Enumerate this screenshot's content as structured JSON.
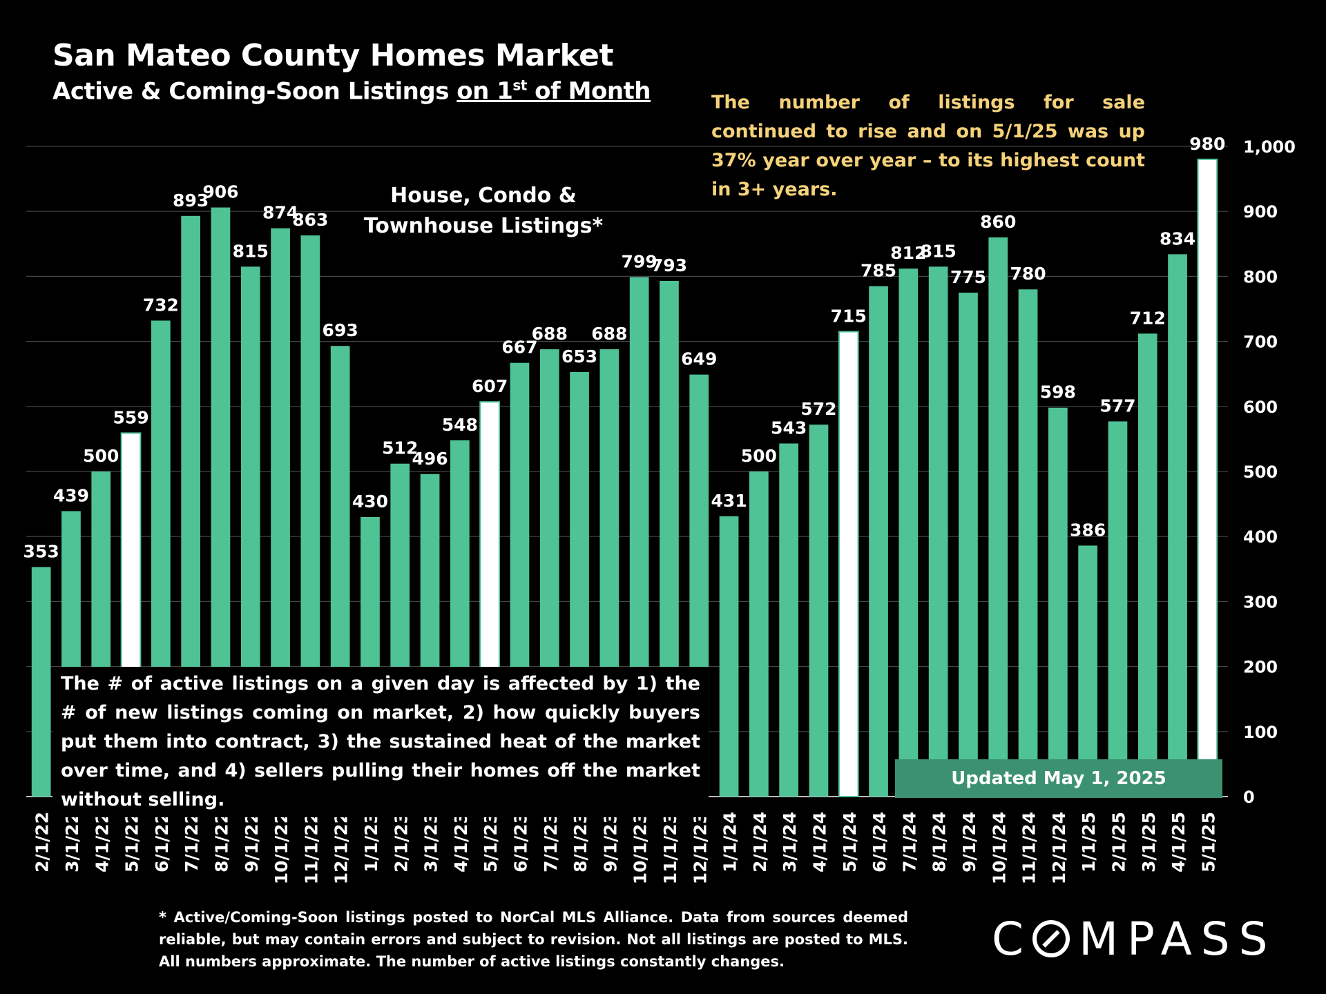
{
  "header": {
    "title": "San Mateo County Homes Market",
    "subtitle_prefix": "Active & Coming-Soon Listings ",
    "subtitle_underlined": "on 1",
    "subtitle_sup": "st",
    "subtitle_suffix": " of Month"
  },
  "callout_text": "The number of listings for sale continued to rise and on 5/1/25 was up 37% year over year – to its highest count in 3+ years.",
  "property_type_label_line1": "House, Condo &",
  "property_type_label_line2": "Townhouse Listings*",
  "note_text": "The # of active listings on a given day is affected by 1) the # of new listings coming on market, 2) how quickly buyers put them into contract, 3) the sustained heat of the market over time, and 4) sellers pulling their homes off the market without selling.",
  "updated_label": "Updated May 1, 2025",
  "footnote": "* Active/Coming-Soon listings posted to NorCal MLS Alliance.  Data from sources deemed reliable, but may contain errors and subject to revision.  Not all listings are posted to MLS. All numbers approximate. The number of active listings constantly changes.",
  "logo_text": "COMPASS",
  "colors": {
    "bar": "#4fc396",
    "highlight_bar": "#ffffff",
    "callout": "#f5d27a",
    "background": "#000000"
  },
  "chart_data": {
    "type": "bar",
    "title": "San Mateo County Homes Market",
    "categories": [
      "2/1/22",
      "3/1/22",
      "4/1/22",
      "5/1/22",
      "6/1/22",
      "7/1/22",
      "8/1/22",
      "9/1/22",
      "10/1/22",
      "11/1/22",
      "12/1/22",
      "1/1/23",
      "2/1/23",
      "3/1/23",
      "4/1/23",
      "5/1/23",
      "6/1/23",
      "7/1/23",
      "8/1/23",
      "9/1/23",
      "10/1/23",
      "11/1/23",
      "12/1/23",
      "1/1/24",
      "2/1/24",
      "3/1/24",
      "4/1/24",
      "5/1/24",
      "6/1/24",
      "7/1/24",
      "8/1/24",
      "9/1/24",
      "10/1/24",
      "11/1/24",
      "12/1/24",
      "1/1/25",
      "2/1/25",
      "3/1/25",
      "4/1/25",
      "5/1/25"
    ],
    "values": [
      353,
      439,
      500,
      559,
      732,
      893,
      906,
      815,
      874,
      863,
      693,
      430,
      512,
      496,
      548,
      607,
      667,
      688,
      653,
      688,
      799,
      793,
      649,
      431,
      500,
      543,
      572,
      715,
      785,
      812,
      815,
      775,
      860,
      780,
      598,
      386,
      577,
      712,
      834,
      980
    ],
    "highlighted_categories": [
      "5/1/22",
      "5/1/23",
      "5/1/24",
      "5/1/25"
    ],
    "ylim": [
      0,
      1000
    ],
    "yticks": [
      "0",
      "100",
      "200",
      "300",
      "400",
      "500",
      "600",
      "700",
      "800",
      "900",
      "1,000"
    ],
    "y_axis_side": "right",
    "grid": true,
    "legend": "none"
  }
}
